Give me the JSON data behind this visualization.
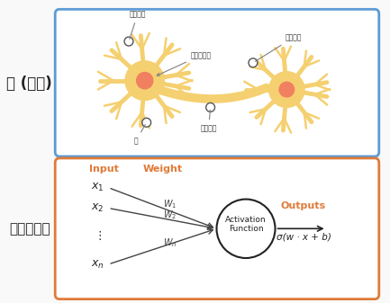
{
  "background_color": "#f9f9f9",
  "top_box_color": "#5b9bd5",
  "bottom_box_color": "#e07b39",
  "neuron_body_color": "#f5d070",
  "neuron_center_color": "#f08060",
  "top_label": "뇌 (뉴런)",
  "bottom_label": "인공신경망",
  "korean_labels": {
    "gajidulgi": "가지돌기",
    "singyeong": "신경세포체",
    "chuksildulgi": "축삭돌기",
    "haeg": "핵",
    "chuksimaldan": "축삭말단"
  },
  "ann_labels": {
    "input": "Input",
    "weight": "Weight",
    "outputs": "Outputs",
    "activation": "Activation\nFunction",
    "formula": "σ(w · x + b)"
  },
  "orange_color": "#e07b39",
  "blue_color": "#5b9bd5"
}
